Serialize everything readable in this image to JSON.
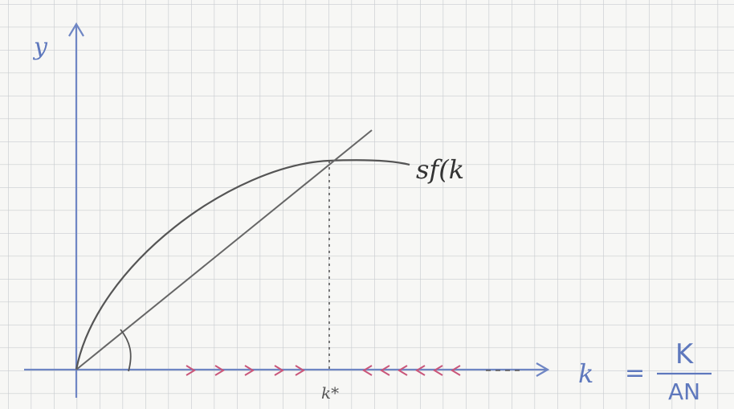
{
  "axes": {
    "y_label": "y",
    "x_label": "k"
  },
  "curve_label": "sf(k",
  "steady_state_label": "k*",
  "equation": {
    "lhs": "k",
    "equals": "=",
    "numerator": "K",
    "denominator": "AN"
  }
}
